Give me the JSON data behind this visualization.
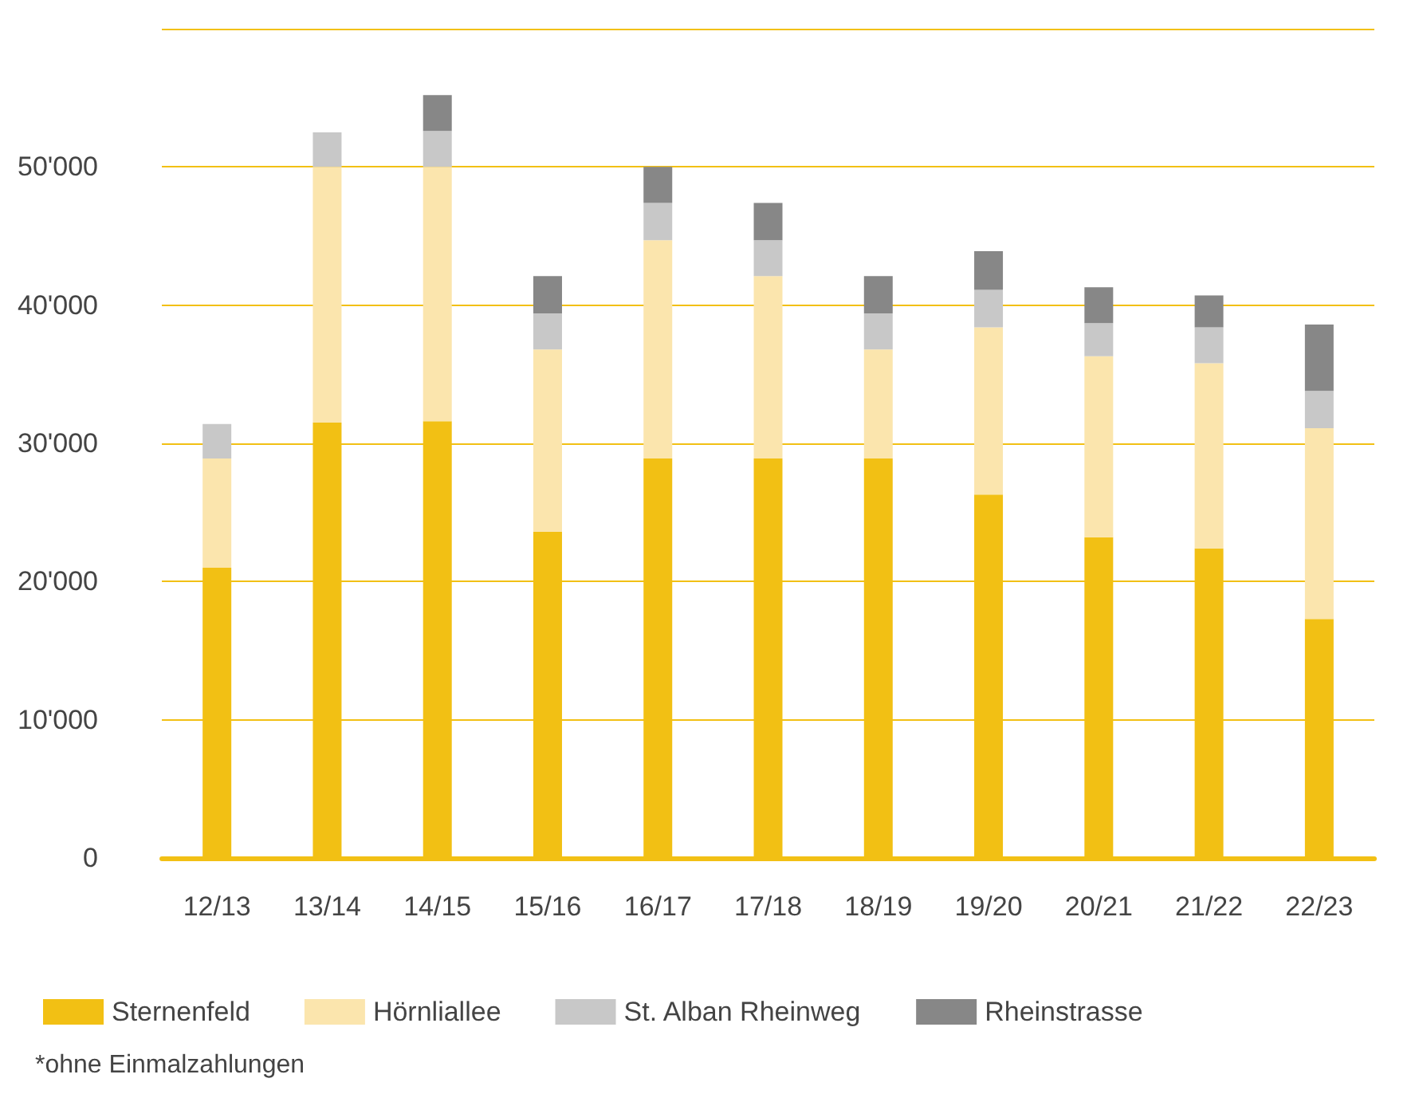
{
  "chart_data": {
    "type": "bar",
    "stacked": true,
    "categories": [
      "12/13",
      "13/14",
      "14/15",
      "15/16",
      "16/17",
      "17/18",
      "18/19",
      "19/20",
      "20/21",
      "21/22",
      "22/23"
    ],
    "series": [
      {
        "name": "Sternenfeld",
        "color": "#f2c014",
        "values": [
          21000,
          31500,
          31600,
          23600,
          28900,
          28900,
          28900,
          26300,
          23200,
          22400,
          17300
        ]
      },
      {
        "name": "Hörnliallee",
        "color": "#fbe5ad",
        "values": [
          7900,
          18500,
          18400,
          13200,
          15800,
          13200,
          7900,
          12100,
          13100,
          13400,
          13800
        ]
      },
      {
        "name": "St. Alban Rheinweg",
        "color": "#c8c8c8",
        "values": [
          2500,
          2500,
          2600,
          2600,
          2700,
          2600,
          2600,
          2700,
          2400,
          2600,
          2700
        ]
      },
      {
        "name": "Rheinstrasse",
        "color": "#878787",
        "values": [
          0,
          0,
          2600,
          2700,
          2600,
          2700,
          2700,
          2800,
          2600,
          2300,
          4800
        ]
      }
    ],
    "ylim": [
      0,
      60000
    ],
    "yticks": [
      {
        "value": 0,
        "label": "0"
      },
      {
        "value": 10000,
        "label": "10'000"
      },
      {
        "value": 20000,
        "label": "20'000"
      },
      {
        "value": 30000,
        "label": "30'000"
      },
      {
        "value": 40000,
        "label": "40'000"
      },
      {
        "value": 50000,
        "label": "50'000"
      },
      {
        "value": 60000,
        "label": null
      }
    ],
    "grid": "y",
    "legend": "bottom left",
    "annotations": [
      "*ohne Einmalzahlungen"
    ]
  }
}
